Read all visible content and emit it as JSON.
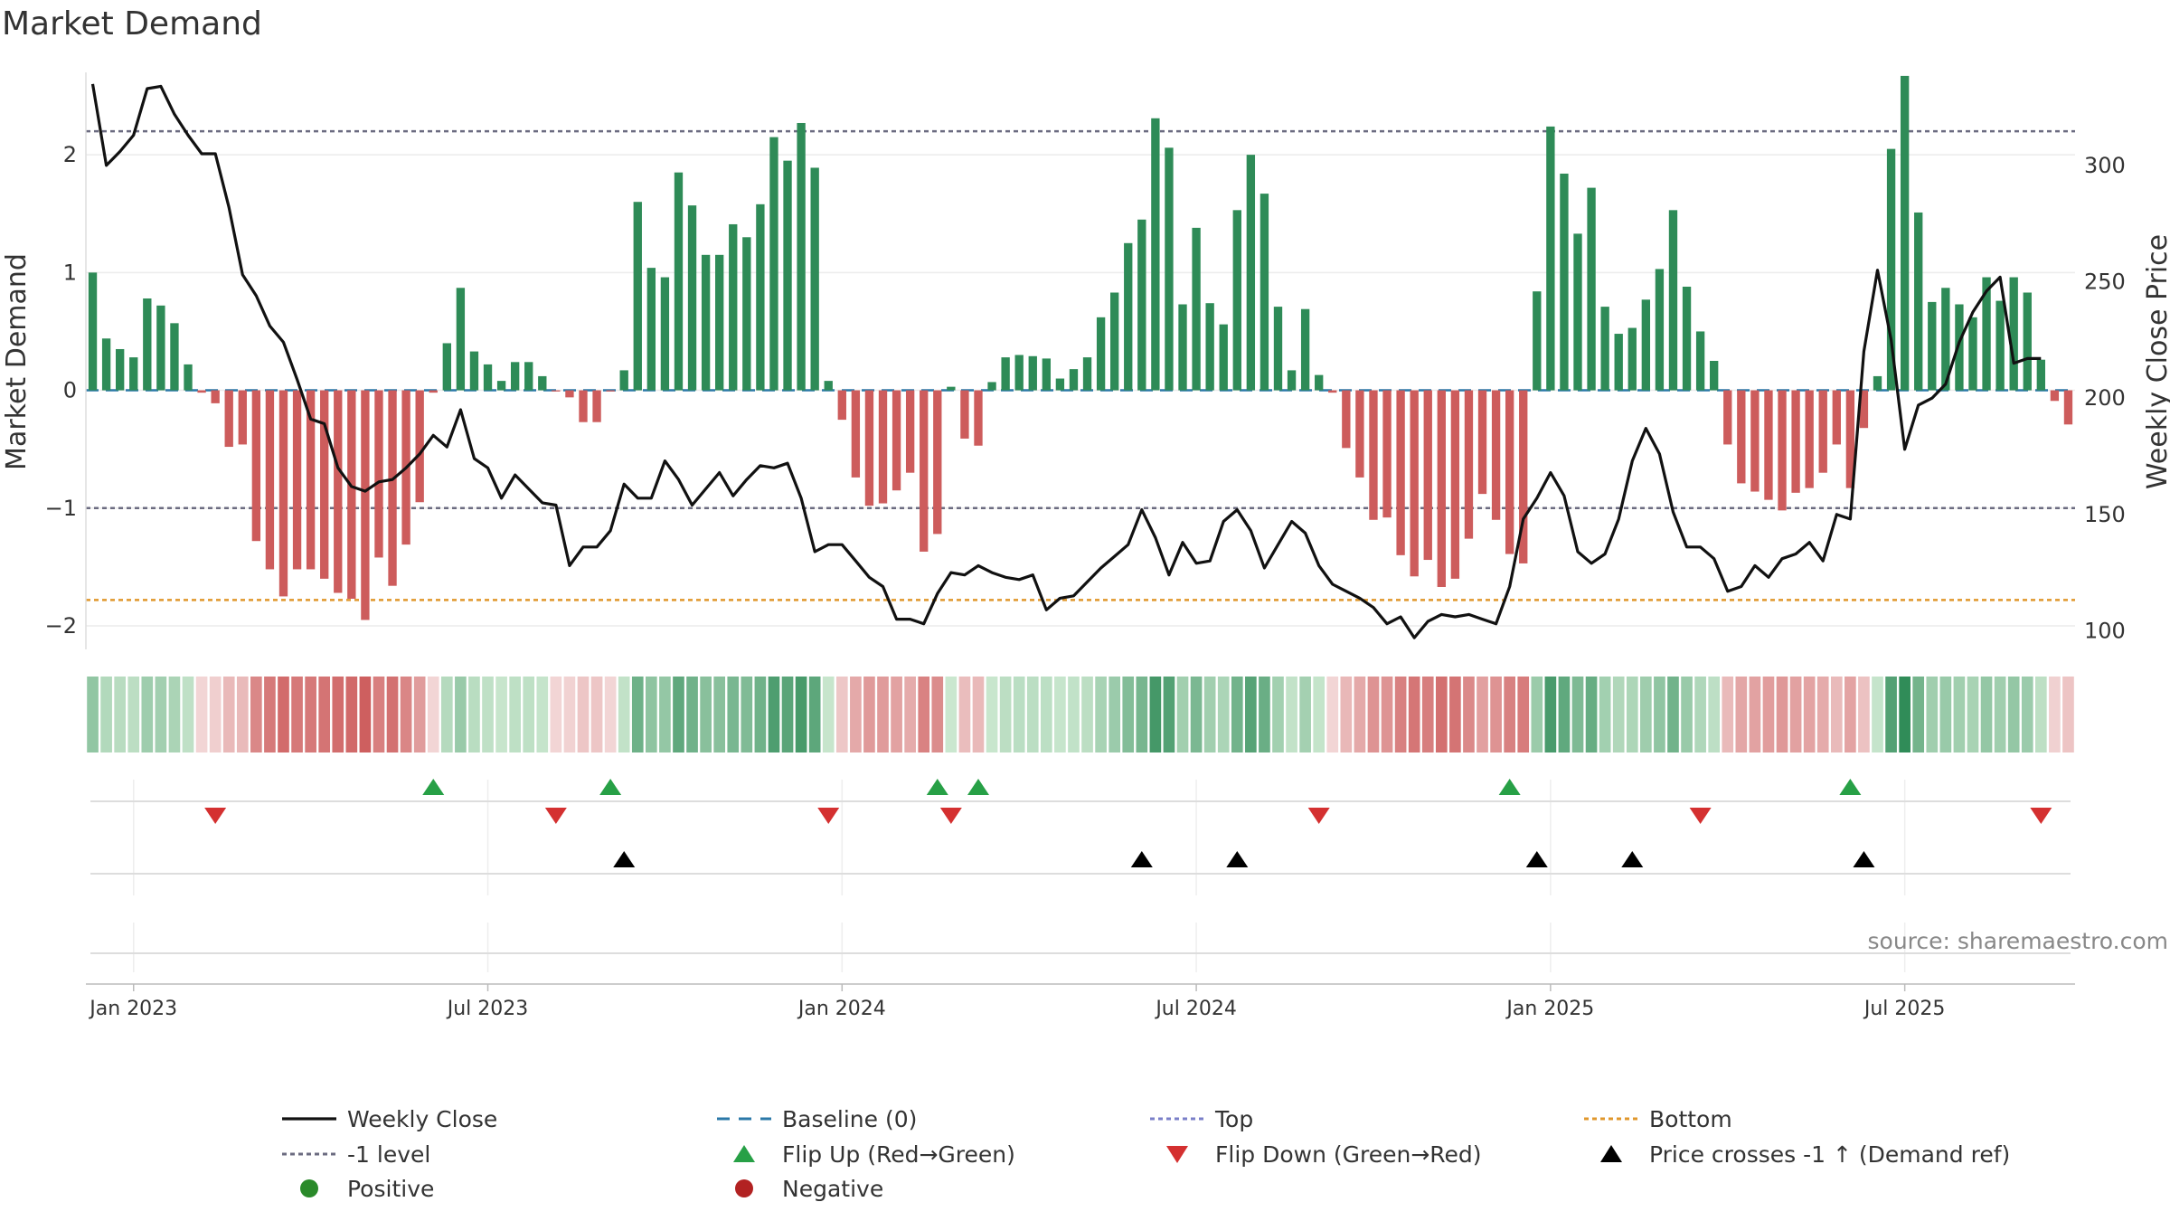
{
  "chart_data": {
    "title": "Market Demand",
    "type": "bar+line",
    "ylabel_left": "Market Demand",
    "ylabel_right": "Weekly Close Price",
    "ylim_left": [
      -2.2,
      2.7
    ],
    "ylim_right": [
      92,
      340
    ],
    "left_ticks": [
      2,
      1,
      0,
      -1,
      -2
    ],
    "left_tick_labels": [
      "2",
      "1",
      "0",
      "−1",
      "−2"
    ],
    "right_ticks": [
      300,
      250,
      200,
      150,
      100
    ],
    "right_tick_labels": [
      "300",
      "250",
      "200",
      "150",
      "100"
    ],
    "x_tick_labels": [
      "Jan 2023",
      "Jul 2023",
      "Jan 2024",
      "Jul 2024",
      "Jan 2025",
      "Jul 2025"
    ],
    "x_tick_weeks": [
      3,
      29,
      55,
      81,
      107,
      133
    ],
    "reference_levels": {
      "top": 2.2,
      "minus_one": -1.0,
      "bottom": -1.78
    },
    "demand": [
      1.0,
      0.44,
      0.35,
      0.28,
      0.78,
      0.72,
      0.57,
      0.22,
      -0.02,
      -0.11,
      -0.48,
      -0.46,
      -1.28,
      -1.52,
      -1.75,
      -1.52,
      -1.52,
      -1.6,
      -1.72,
      -1.77,
      -1.95,
      -1.42,
      -1.66,
      -1.31,
      -0.95,
      -0.02,
      0.4,
      0.87,
      0.33,
      0.22,
      0.08,
      0.24,
      0.24,
      0.12,
      -0.01,
      -0.06,
      -0.27,
      -0.27,
      -0.01,
      0.17,
      1.6,
      1.04,
      0.96,
      1.85,
      1.57,
      1.15,
      1.15,
      1.41,
      1.3,
      1.58,
      2.15,
      1.95,
      2.27,
      1.89,
      0.08,
      -0.25,
      -0.74,
      -0.98,
      -0.96,
      -0.85,
      -0.7,
      -1.37,
      -1.22,
      0.03,
      -0.41,
      -0.47,
      0.07,
      0.28,
      0.3,
      0.29,
      0.27,
      0.1,
      0.18,
      0.28,
      0.62,
      0.83,
      1.25,
      1.45,
      2.31,
      2.06,
      0.73,
      1.38,
      0.74,
      0.56,
      1.53,
      2.0,
      1.67,
      0.71,
      0.17,
      0.69,
      0.13,
      -0.02,
      -0.49,
      -0.74,
      -1.1,
      -1.08,
      -1.4,
      -1.58,
      -1.44,
      -1.67,
      -1.6,
      -1.26,
      -0.88,
      -1.1,
      -1.39,
      -1.47,
      0.84,
      2.24,
      1.84,
      1.33,
      1.72,
      0.71,
      0.48,
      0.53,
      0.77,
      1.03,
      1.53,
      0.88,
      0.5,
      0.25,
      -0.46,
      -0.79,
      -0.86,
      -0.93,
      -1.02,
      -0.87,
      -0.83,
      -0.7,
      -0.46,
      -0.83,
      -0.32,
      0.12,
      2.05,
      2.67,
      1.51,
      0.75,
      0.87,
      0.73,
      0.62,
      0.96,
      0.76,
      0.96,
      0.83,
      0.26,
      -0.09,
      -0.29
    ],
    "close": [
      335,
      300,
      306,
      313,
      333,
      334,
      322,
      313,
      305,
      305,
      282,
      253,
      244,
      231,
      224,
      208,
      191,
      189,
      170,
      162,
      160,
      164,
      165,
      170,
      176,
      184,
      179,
      195,
      174,
      170,
      157,
      167,
      161,
      155,
      154,
      128,
      136,
      136,
      143,
      163,
      157,
      157,
      173,
      165,
      154,
      161,
      168,
      158,
      165,
      171,
      170,
      172,
      157,
      134,
      137,
      137,
      130,
      123,
      119,
      105,
      105,
      103,
      116,
      125,
      124,
      128,
      125,
      123,
      122,
      124,
      109,
      114,
      115,
      121,
      127,
      132,
      137,
      152,
      140,
      124,
      138,
      129,
      130,
      147,
      152,
      143,
      127,
      137,
      147,
      142,
      128,
      120,
      117,
      114,
      110,
      103,
      106,
      97,
      104,
      107,
      106,
      107,
      105,
      103,
      119,
      148,
      157,
      168,
      158,
      134,
      129,
      133,
      148,
      173,
      187,
      176,
      151,
      136,
      136,
      131,
      117,
      119,
      128,
      123,
      131,
      133,
      138,
      130,
      150,
      148,
      220,
      255,
      225,
      178,
      197,
      200,
      206,
      224,
      237,
      246,
      252,
      215,
      217,
      217
    ],
    "flip_up_weeks": [
      25,
      38,
      62,
      65,
      104,
      129
    ],
    "flip_down_weeks": [
      9,
      34,
      54,
      63,
      90,
      118,
      143
    ],
    "price_cross_weeks": [
      39,
      77,
      84,
      106,
      113,
      130
    ],
    "source_text": "source: sharemaestro.com",
    "legend": [
      {
        "label": "Weekly Close",
        "style": "line",
        "color": "#111111"
      },
      {
        "label": "Baseline (0)",
        "style": "dash",
        "color": "#2b78a8"
      },
      {
        "label": "Top",
        "style": "dot",
        "color": "#7a7fc8"
      },
      {
        "label": "Bottom",
        "style": "dot",
        "color": "#e0972c"
      },
      {
        "label": "-1 level",
        "style": "dot",
        "color": "#6b6b80"
      },
      {
        "label": "Flip Up (Red→Green)",
        "style": "tri-up",
        "color": "#27a046"
      },
      {
        "label": "Flip Down (Green→Red)",
        "style": "tri-down",
        "color": "#d43030"
      },
      {
        "label": "Price crosses -1 ↑ (Demand ref)",
        "style": "tri-up",
        "color": "#000000"
      },
      {
        "label": "Positive",
        "style": "circle",
        "color": "#2a8a2a"
      },
      {
        "label": "Negative",
        "style": "circle",
        "color": "#b22222"
      }
    ],
    "colors": {
      "positive_bar": "#2e8b57",
      "negative_bar": "#cd5c5c"
    }
  }
}
